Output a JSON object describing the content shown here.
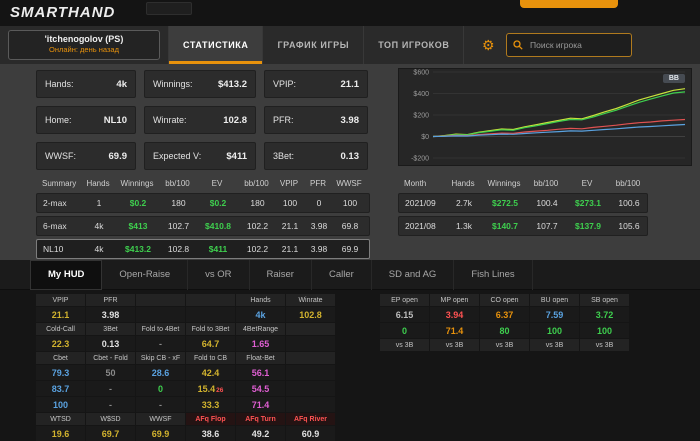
{
  "palette": {
    "accent_orange": "#e8920c",
    "green": "#3ecf4e",
    "yellow": "#d2b32e",
    "blue": "#5aa2e0",
    "pink": "#e05fd3",
    "red": "#ff5252"
  },
  "header": {
    "logo": "SMARTHAND"
  },
  "toolbar": {
    "player_name": "'itchenogolov (PS)",
    "player_status": "Онлайн: день назад",
    "tabs": [
      {
        "label": "СТАТИСТИКА"
      },
      {
        "label": "ГРАФИК ИГРЫ"
      },
      {
        "label": "ТОП ИГРОКОВ"
      }
    ],
    "search_placeholder": "Поиск игрока"
  },
  "stat_boxes": [
    {
      "label": "Hands:",
      "value": "4k"
    },
    {
      "label": "Winnings:",
      "value": "$413.2"
    },
    {
      "label": "VPIP:",
      "value": "21.1"
    },
    {
      "label": "Home:",
      "value": "NL10"
    },
    {
      "label": "Winrate:",
      "value": "102.8"
    },
    {
      "label": "PFR:",
      "value": "3.98"
    },
    {
      "label": "WWSF:",
      "value": "69.9"
    },
    {
      "label": "Expected V:",
      "value": "$411"
    },
    {
      "label": "3Bet:",
      "value": "0.13"
    }
  ],
  "summary_table": {
    "headers": [
      "Summary",
      "Hands",
      "Winnings",
      "bb/100",
      "EV",
      "bb/100",
      "VPIP",
      "PFR",
      "WWSF"
    ],
    "rows": [
      {
        "name": "2-max",
        "cells": [
          "1",
          "$0.2",
          "180",
          "$0.2",
          "180",
          "100",
          "0",
          "100"
        ]
      },
      {
        "name": "6-max",
        "cells": [
          "4k",
          "$413",
          "102.7",
          "$410.8",
          "102.2",
          "21.1",
          "3.98",
          "69.8"
        ]
      },
      {
        "name": "NL10",
        "cells": [
          "4k",
          "$413.2",
          "102.8",
          "$411",
          "102.2",
          "21.1",
          "3.98",
          "69.9"
        ]
      }
    ]
  },
  "month_table": {
    "headers": [
      "Month",
      "Hands",
      "Winnings",
      "bb/100",
      "EV",
      "bb/100"
    ],
    "rows": [
      {
        "name": "2021/09",
        "cells": [
          "2.7k",
          "$272.5",
          "100.4",
          "$273.1",
          "100.6"
        ]
      },
      {
        "name": "2021/08",
        "cells": [
          "1.3k",
          "$140.7",
          "107.7",
          "$137.9",
          "105.6"
        ]
      }
    ]
  },
  "chart_data": {
    "type": "line",
    "title": "",
    "legend": "BB",
    "xlabel": "",
    "ylabel": "",
    "ylim": [
      -200,
      600
    ],
    "grid": true,
    "y_ticks": [
      {
        "v": 600,
        "label": "$600"
      },
      {
        "v": 400,
        "label": "$400"
      },
      {
        "v": 200,
        "label": "$200"
      },
      {
        "v": 0,
        "label": "$0"
      },
      {
        "v": -200,
        "label": "-$200"
      }
    ],
    "series": [
      {
        "name": "winnings_bb",
        "color": "#c8e23c",
        "values": [
          0,
          8,
          22,
          18,
          40,
          55,
          70,
          65,
          90,
          110,
          130,
          150,
          170,
          165,
          195,
          230,
          260,
          300,
          340,
          370,
          400,
          430,
          445
        ]
      },
      {
        "name": "winnings_usd",
        "color": "#3ecf4e",
        "values": [
          0,
          6,
          18,
          15,
          35,
          48,
          62,
          58,
          82,
          100,
          120,
          140,
          158,
          155,
          182,
          215,
          245,
          282,
          318,
          348,
          378,
          405,
          415
        ]
      },
      {
        "name": "red_line",
        "color": "#e05252",
        "values": [
          0,
          4,
          10,
          8,
          18,
          25,
          32,
          30,
          42,
          50,
          58,
          68,
          75,
          72,
          85,
          95,
          105,
          118,
          128,
          135,
          145,
          152,
          158
        ]
      },
      {
        "name": "blue_line",
        "color": "#5aa2e0",
        "values": [
          0,
          2,
          6,
          5,
          12,
          17,
          22,
          20,
          28,
          34,
          40,
          46,
          52,
          50,
          58,
          65,
          72,
          80,
          88,
          93,
          100,
          106,
          112
        ]
      }
    ]
  },
  "hud": {
    "tabs": [
      {
        "label": "My HUD"
      },
      {
        "label": "Open-Raise"
      },
      {
        "label": "vs OR"
      },
      {
        "label": "Raiser"
      },
      {
        "label": "Caller"
      },
      {
        "label": "SD and AG"
      },
      {
        "label": "Fish Lines"
      }
    ],
    "left": {
      "r1": [
        "VPIP",
        "PFR",
        "",
        "",
        "Hands",
        "Winrate"
      ],
      "r2": [
        "21.1",
        "3.98",
        "",
        "",
        "4k",
        "102.8"
      ],
      "r3": [
        "Cold-Call",
        "3Bet",
        "Fold to 4Bet",
        "Fold to 3Bet",
        "4BetRange",
        ""
      ],
      "r4": [
        "22.3",
        "0.13",
        "-",
        "64.7",
        "1.65",
        ""
      ],
      "r5": [
        "Cbet",
        "Cbet - Fold",
        "Skip CB - xF",
        "Fold to CB",
        "Float-Bet",
        ""
      ],
      "r6": [
        "79.3",
        "50",
        "28.6",
        "42.4",
        "56.1",
        ""
      ],
      "r7": [
        "83.7",
        "-",
        "0",
        "15.4",
        "54.5",
        ""
      ],
      "r7_sub": "26",
      "r8": [
        "100",
        "-",
        "-",
        "33.3",
        "71.4",
        ""
      ],
      "r9": [
        "WTSD",
        "W$SD",
        "WWSF",
        "AFq Flop",
        "AFq Turn",
        "AFq River"
      ],
      "r10": [
        "19.6",
        "69.7",
        "69.9",
        "38.6",
        "49.2",
        "60.9"
      ]
    },
    "right": {
      "headers": [
        "EP open",
        "MP open",
        "CO open",
        "BU open",
        "SB open"
      ],
      "r1": [
        "6.15",
        "3.94",
        "6.37",
        "7.59",
        "3.72"
      ],
      "r2": [
        "0",
        "71.4",
        "80",
        "100",
        "100"
      ],
      "r3": [
        "vs 3B",
        "vs 3B",
        "vs 3B",
        "vs 3B",
        "vs 3B"
      ]
    }
  }
}
